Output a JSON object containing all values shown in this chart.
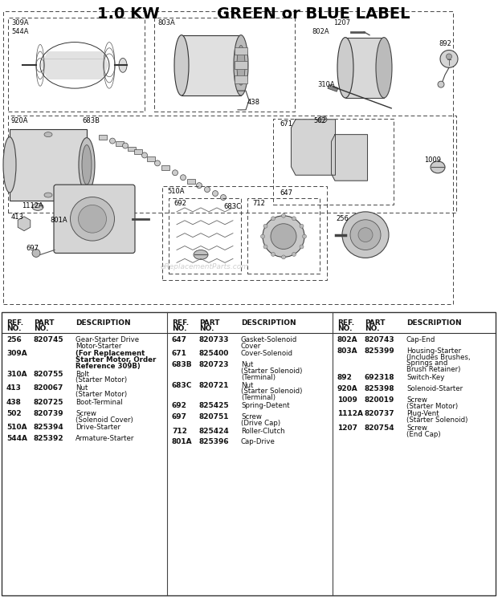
{
  "title_part1": "1.0 KW",
  "title_part2": "GREEN or BLUE LABEL",
  "bg_color": "#f5f5f0",
  "col1_rows": [
    [
      "256",
      "820745",
      "Gear-Starter Drive\nMotor-Starter",
      false
    ],
    [
      "309A",
      "",
      "(For Replacement\nStarter Motor, Order\nReference 309B)",
      true
    ],
    [
      "310A",
      "820755",
      "Bolt\n(Starter Motor)",
      false
    ],
    [
      "413",
      "820067",
      "Nut\n(Starter Motor)",
      false
    ],
    [
      "438",
      "820725",
      "Boot-Terminal",
      false
    ],
    [
      "502",
      "820739",
      "Screw\n(Solenoid Cover)",
      false
    ],
    [
      "510A",
      "825394",
      "Drive-Starter",
      false
    ],
    [
      "544A",
      "825392",
      "Armature-Starter",
      false
    ]
  ],
  "col2_rows": [
    [
      "647",
      "820733",
      "Gasket-Solenoid\nCover",
      false
    ],
    [
      "671",
      "825400",
      "Cover-Solenoid",
      false
    ],
    [
      "683B",
      "820723",
      "Nut\n(Starter Solenoid)\n(Terminal)",
      false
    ],
    [
      "683C",
      "820721",
      "Nut\n(Starter Solenoid)\n(Terminal)",
      false
    ],
    [
      "692",
      "825425",
      "Spring-Detent",
      false
    ],
    [
      "697",
      "820751",
      "Screw\n(Drive Cap)",
      false
    ],
    [
      "712",
      "825424",
      "Roller-Clutch",
      false
    ],
    [
      "801A",
      "825396",
      "Cap-Drive",
      false
    ]
  ],
  "col3_rows": [
    [
      "802A",
      "820743",
      "Cap-End",
      false
    ],
    [
      "803A",
      "825399",
      "Housing-Starter\n(Includes Brushes,\nSprings and\nBrush Retainer)",
      false
    ],
    [
      "892",
      "692318",
      "Switch-Key",
      false
    ],
    [
      "920A",
      "825398",
      "Solenoid-Starter",
      false
    ],
    [
      "1009",
      "820019",
      "Screw\n(Starter Motor)",
      false
    ],
    [
      "1112A",
      "820737",
      "Plug-Vent\n(Starter Solenoid)",
      false
    ],
    [
      "1207",
      "820754",
      "Screw\n(End Cap)",
      false
    ]
  ],
  "watermark": "eReplacementParts.com"
}
